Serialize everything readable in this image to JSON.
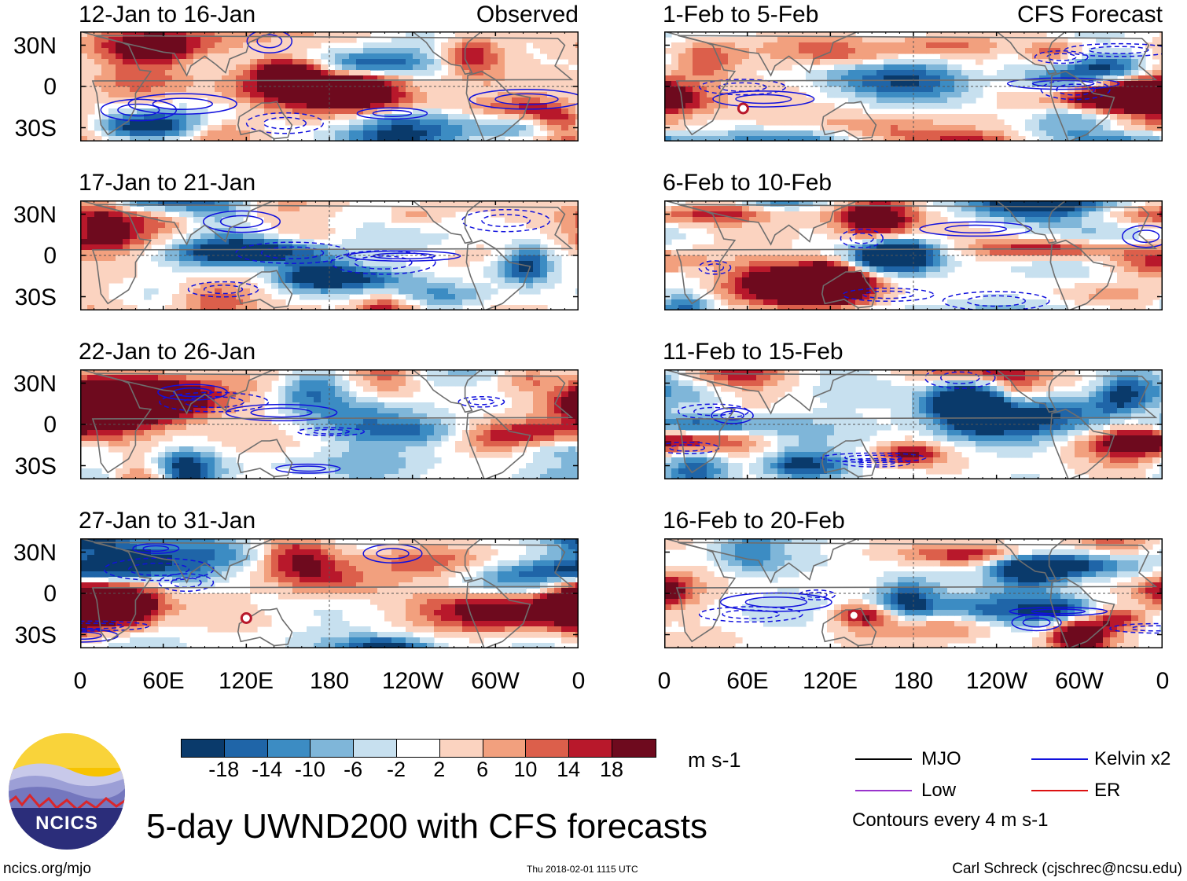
{
  "page_title": "5-day UWND200 with CFS forecasts",
  "footer": {
    "site": "ncics.org/mjo",
    "timestamp": "Thu 2018-02-01 1115 UTC",
    "author": "Carl Schreck (cjschrec@ncsu.edu)"
  },
  "logo": {
    "text": "NCICS"
  },
  "column_labels": {
    "observed": "Observed",
    "forecast": "CFS Forecast"
  },
  "chart_data": {
    "type": "heatmap",
    "variable": "200-hPa zonal wind anomaly",
    "units": "m s-1",
    "lat_ticks": [
      "30N",
      "0",
      "30S"
    ],
    "lon_ticks": [
      "0",
      "60E",
      "120E",
      "180",
      "120W",
      "60W",
      "0"
    ],
    "ylim": [
      -40,
      40
    ],
    "xlim": [
      0,
      360
    ],
    "panels": [
      {
        "period": "12-Jan to 16-Jan",
        "source": "Observed",
        "cyclones": []
      },
      {
        "period": "17-Jan to 21-Jan",
        "source": "Observed",
        "cyclones": []
      },
      {
        "period": "22-Jan to 26-Jan",
        "source": "Observed",
        "cyclones": []
      },
      {
        "period": "27-Jan to 31-Jan",
        "source": "Observed",
        "cyclones": [
          {
            "lon": 120,
            "lat": -18
          }
        ]
      },
      {
        "period": "1-Feb to 5-Feb",
        "source": "CFS Forecast",
        "cyclones": [
          {
            "lon": 57,
            "lat": -16
          }
        ]
      },
      {
        "period": "6-Feb to 10-Feb",
        "source": "CFS Forecast",
        "cyclones": []
      },
      {
        "period": "11-Feb to 15-Feb",
        "source": "CFS Forecast",
        "cyclones": []
      },
      {
        "period": "16-Feb to 20-Feb",
        "source": "CFS Forecast",
        "cyclones": [
          {
            "lon": 137,
            "lat": -16
          }
        ]
      }
    ],
    "colorbar": {
      "labels": [
        "-18",
        "-14",
        "-10",
        "-6",
        "-2",
        "2",
        "6",
        "10",
        "14",
        "18"
      ],
      "units": "m s-1",
      "colors": [
        "#0a3a6b",
        "#1f65a8",
        "#3c8cc3",
        "#7fb6d9",
        "#c7e0ef",
        "#ffffff",
        "#fbd3c0",
        "#f2a07e",
        "#dc5f4b",
        "#b8182b",
        "#6e0a1e"
      ]
    },
    "legend": [
      {
        "label": "MJO",
        "color": "#000000"
      },
      {
        "label": "Kelvin x2",
        "color": "#1111dd"
      },
      {
        "label": "Low",
        "color": "#9933cc"
      },
      {
        "label": "ER",
        "color": "#dd1111"
      }
    ],
    "contour_note": "Contours every 4 m s-1"
  }
}
